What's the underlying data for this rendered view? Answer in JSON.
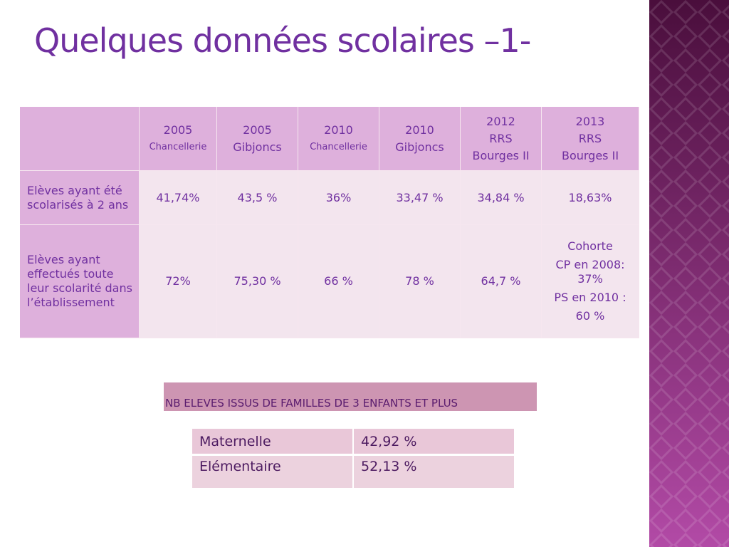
{
  "title": "Quelques données scolaires –1-",
  "table": {
    "header": [
      [
        "2005",
        "Chancellerie"
      ],
      [
        "2005",
        "Gibjoncs"
      ],
      [
        "2010",
        "Chancellerie"
      ],
      [
        "2010",
        "Gibjoncs"
      ],
      [
        "2012",
        "RRS",
        "Bourges II"
      ],
      [
        "2013",
        "RRS",
        "Bourges II"
      ]
    ],
    "rows": [
      {
        "label": "Elèves ayant été scolarisés à 2 ans",
        "cells": [
          [
            "41,74%"
          ],
          [
            "43,5 %"
          ],
          [
            "36%"
          ],
          [
            "33,47  %"
          ],
          [
            "34,84 %"
          ],
          [
            "18,63%"
          ]
        ]
      },
      {
        "label": "Elèves ayant effectués toute leur scolarité dans l’établissement",
        "cells": [
          [
            "72%"
          ],
          [
            "75,30 %"
          ],
          [
            "66 %"
          ],
          [
            "78 %"
          ],
          [
            "64,7 %"
          ],
          [
            "Cohorte",
            "CP en 2008: 37%",
            "PS en 2010 :",
            "60 %"
          ]
        ]
      }
    ]
  },
  "banner": "NB ELEVES ISSUS DE FAMILLES DE 3 ENFANTS ET PLUS",
  "table2": {
    "rows": [
      [
        "Maternelle",
        "42,92 %"
      ],
      [
        "Elémentaire",
        "52,13 %"
      ]
    ]
  }
}
